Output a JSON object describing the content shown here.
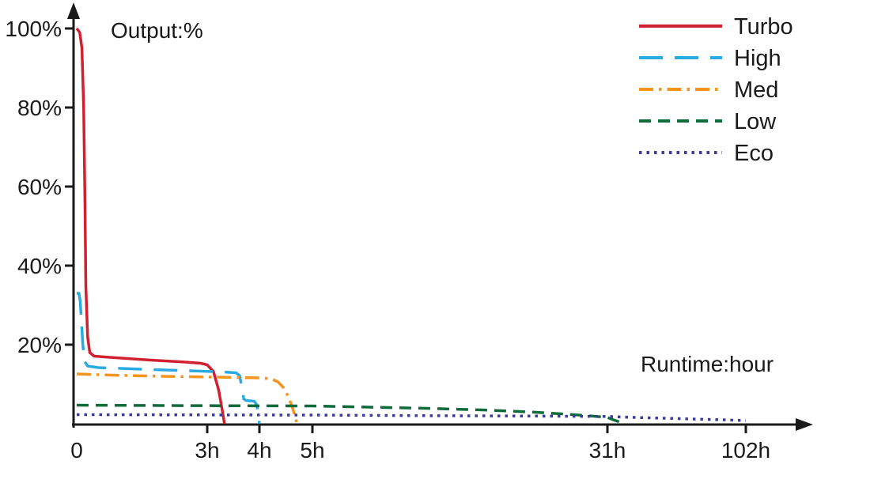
{
  "axis": {
    "color": "#1a1a1a",
    "text_color": "#1a1a1a"
  },
  "chart_data": {
    "type": "line",
    "title": "",
    "y_axis_label": "Output:%",
    "x_axis_label": "Runtime:hour",
    "grid": false,
    "legend_position": "top-right",
    "ylim": [
      0,
      105
    ],
    "x_axis_nonlinear": true,
    "y_ticks": [
      {
        "pct": 100,
        "label": "100%"
      },
      {
        "pct": 80,
        "label": "80%"
      },
      {
        "pct": 60,
        "label": "60%"
      },
      {
        "pct": 40,
        "label": "40%"
      },
      {
        "pct": 20,
        "label": "20%"
      }
    ],
    "x_ticks": [
      {
        "hour": 0,
        "label": "0"
      },
      {
        "hour": 3,
        "label": "3h"
      },
      {
        "hour": 4,
        "label": "4h"
      },
      {
        "hour": 5,
        "label": "5h"
      },
      {
        "hour": 31,
        "label": "31h"
      },
      {
        "hour": 102,
        "label": "102h"
      }
    ],
    "series": [
      {
        "name": "Turbo",
        "color": "#d1202f",
        "dash": "solid",
        "runtime_hours": 3.3,
        "points": [
          [
            0,
            100
          ],
          [
            0.07,
            99
          ],
          [
            0.12,
            95
          ],
          [
            0.16,
            80
          ],
          [
            0.19,
            55
          ],
          [
            0.21,
            35
          ],
          [
            0.25,
            22
          ],
          [
            0.3,
            18
          ],
          [
            0.4,
            17.1
          ],
          [
            0.9,
            16.7
          ],
          [
            1.7,
            16.1
          ],
          [
            2.5,
            15.6
          ],
          [
            2.85,
            15.3
          ],
          [
            3.0,
            14.9
          ],
          [
            3.12,
            13.2
          ],
          [
            3.22,
            8.5
          ],
          [
            3.3,
            2.5
          ],
          [
            3.33,
            0
          ]
        ]
      },
      {
        "name": "High",
        "color": "#29abe2",
        "dash": "long-dash",
        "runtime_hours": 4.0,
        "points": [
          [
            0,
            33
          ],
          [
            0.05,
            33
          ],
          [
            0.08,
            31
          ],
          [
            0.11,
            26
          ],
          [
            0.14,
            20
          ],
          [
            0.18,
            15.8
          ],
          [
            0.25,
            14.6
          ],
          [
            0.5,
            14.2
          ],
          [
            1.5,
            13.8
          ],
          [
            2.6,
            13.4
          ],
          [
            3.3,
            13.1
          ],
          [
            3.55,
            12.9
          ],
          [
            3.62,
            12.2
          ],
          [
            3.66,
            9.5
          ],
          [
            3.7,
            6.3
          ],
          [
            3.74,
            5.9
          ],
          [
            3.9,
            5.7
          ],
          [
            3.95,
            4.8
          ],
          [
            3.98,
            2
          ],
          [
            4.0,
            0
          ]
        ]
      },
      {
        "name": "Med",
        "color": "#f7941d",
        "dash": "dash-dot",
        "runtime_hours": 4.7,
        "points": [
          [
            0,
            12.6
          ],
          [
            0.8,
            12.3
          ],
          [
            2.0,
            12.0
          ],
          [
            3.2,
            11.8
          ],
          [
            4.0,
            11.6
          ],
          [
            4.22,
            11.4
          ],
          [
            4.35,
            10.6
          ],
          [
            4.45,
            9.2
          ],
          [
            4.55,
            6.8
          ],
          [
            4.63,
            3.8
          ],
          [
            4.69,
            1
          ],
          [
            4.71,
            0
          ]
        ]
      },
      {
        "name": "Low",
        "color": "#0e6b3a",
        "dash": "dash",
        "runtime_hours": 39,
        "points": [
          [
            0,
            4.7
          ],
          [
            2,
            4.6
          ],
          [
            5,
            4.5
          ],
          [
            10,
            4.2
          ],
          [
            15,
            3.9
          ],
          [
            20,
            3.5
          ],
          [
            24,
            3.0
          ],
          [
            27,
            2.5
          ],
          [
            29,
            2.1
          ],
          [
            31,
            1.6
          ],
          [
            34,
            1.0
          ],
          [
            37,
            0.5
          ],
          [
            39,
            0.2
          ]
        ]
      },
      {
        "name": "Eco",
        "color": "#3b3b9e",
        "dash": "dot",
        "runtime_hours": 102,
        "points": [
          [
            0,
            2.3
          ],
          [
            3,
            2.25
          ],
          [
            5,
            2.2
          ],
          [
            15,
            2.05
          ],
          [
            25,
            1.95
          ],
          [
            31,
            1.85
          ],
          [
            45,
            1.6
          ],
          [
            60,
            1.4
          ],
          [
            75,
            1.2
          ],
          [
            90,
            1.0
          ],
          [
            102,
            0.8
          ]
        ]
      }
    ]
  }
}
